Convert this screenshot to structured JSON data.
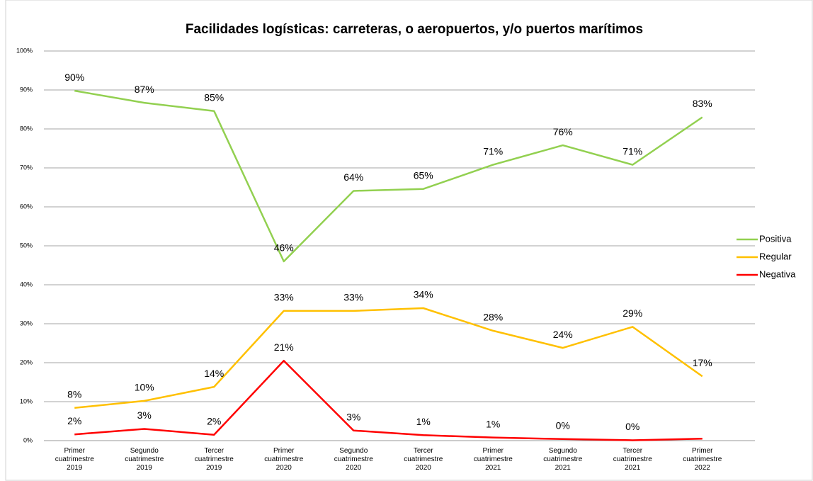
{
  "chart_data": {
    "type": "line",
    "title": "Facilidades logísticas: carreteras, o aeropuertos, y/o puertos marítimos",
    "categories": [
      [
        "Primer",
        "cuatrimestre",
        "2019"
      ],
      [
        "Segundo",
        "cuatrimestre",
        "2019"
      ],
      [
        "Tercer",
        "cuatrimestre",
        "2019"
      ],
      [
        "Primer",
        "cuatrimestre",
        "2020"
      ],
      [
        "Segundo",
        "cuatrimestre",
        "2020"
      ],
      [
        "Tercer",
        "cuatrimestre",
        "2020"
      ],
      [
        "Primer",
        "cuatrimestre",
        "2021"
      ],
      [
        "Segundo",
        "cuatrimestre",
        "2021"
      ],
      [
        "Tercer",
        "cuatrimestre",
        "2021"
      ],
      [
        "Primer",
        "cuatrimestre",
        "2022"
      ]
    ],
    "series": [
      {
        "name": "Positiva",
        "color": "#92d050",
        "values": [
          89.8,
          86.7,
          84.6,
          46,
          64.1,
          64.6,
          70.8,
          75.8,
          70.8,
          83
        ],
        "value_labels": [
          "90%",
          "87%",
          "85%",
          "46%",
          "64%",
          "65%",
          "71%",
          "76%",
          "71%",
          "83%"
        ]
      },
      {
        "name": "Regular",
        "color": "#ffc000",
        "values": [
          8.4,
          10.2,
          13.8,
          33.3,
          33.3,
          34,
          28.2,
          23.8,
          29.2,
          16.5
        ],
        "value_labels": [
          "8%",
          "10%",
          "14%",
          "33%",
          "33%",
          "34%",
          "28%",
          "24%",
          "29%",
          "17%"
        ]
      },
      {
        "name": "Negativa",
        "color": "#ff0000",
        "values": [
          1.6,
          3,
          1.5,
          20.5,
          2.6,
          1.4,
          0.8,
          0.4,
          0.1,
          0.5
        ],
        "value_labels": [
          "2%",
          "3%",
          "2%",
          "21%",
          "3%",
          "1%",
          "1%",
          "0%",
          "0%",
          null
        ]
      }
    ],
    "ylim": [
      0,
      100
    ],
    "yticks": [
      {
        "value": 0,
        "label": "0%"
      },
      {
        "value": 10,
        "label": "10%"
      },
      {
        "value": 20,
        "label": "20%"
      },
      {
        "value": 30,
        "label": "30%"
      },
      {
        "value": 40,
        "label": "40%"
      },
      {
        "value": 50,
        "label": "50%"
      },
      {
        "value": 60,
        "label": "60%"
      },
      {
        "value": 70,
        "label": "70%"
      },
      {
        "value": 80,
        "label": "80%"
      },
      {
        "value": 90,
        "label": "90%"
      },
      {
        "value": 100,
        "label": "100%"
      }
    ],
    "grid": true,
    "legend": "right"
  }
}
